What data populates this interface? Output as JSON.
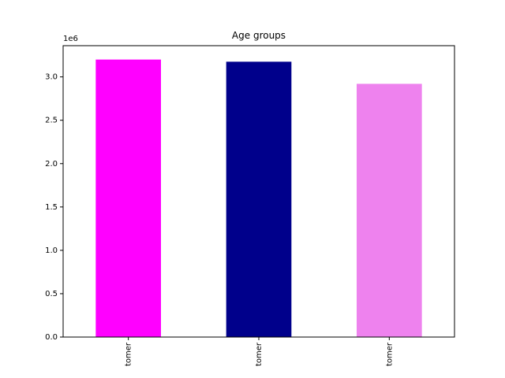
{
  "chart_data": {
    "type": "bar",
    "title": "Age groups",
    "xlabel": "",
    "ylabel": "",
    "y_offset_label": "1e6",
    "categories": [
      "tomer",
      "tomer",
      "tomer"
    ],
    "values": [
      3.2,
      3.175,
      2.92
    ],
    "value_scale": 1000000,
    "colors": [
      "#ff00ff",
      "#00008b",
      "#ee82ee"
    ],
    "ylim": [
      0,
      3.36
    ],
    "yticks": [
      0.0,
      0.5,
      1.0,
      1.5,
      2.0,
      2.5,
      3.0
    ],
    "ytick_labels": [
      "0.0",
      "0.5",
      "1.0",
      "1.5",
      "2.0",
      "2.5",
      "3.0"
    ],
    "grid": false,
    "legend": "none"
  }
}
